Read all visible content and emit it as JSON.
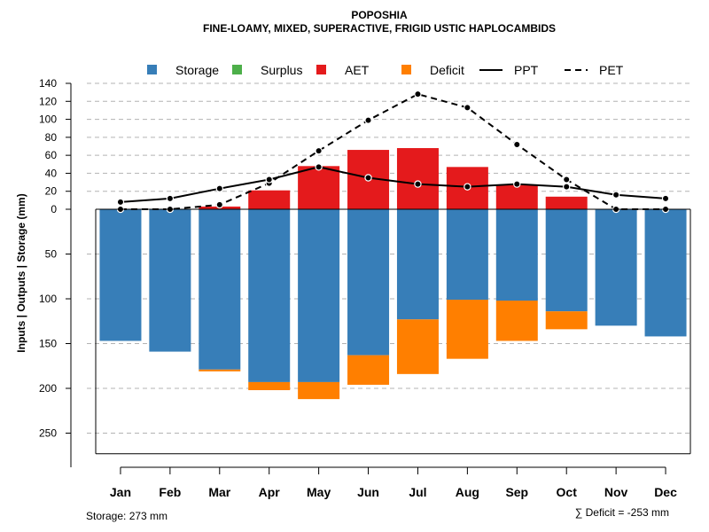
{
  "chart_data": {
    "type": "bar",
    "title": "POPOSHIA",
    "subtitle": "FINE-LOAMY, MIXED, SUPERACTIVE, FRIGID USTIC HAPLOCAMBIDS",
    "ylabel": "Inputs | Outputs | Storage    (mm)",
    "categories": [
      "Jan",
      "Feb",
      "Mar",
      "Apr",
      "May",
      "Jun",
      "Jul",
      "Aug",
      "Sep",
      "Oct",
      "Nov",
      "Dec"
    ],
    "upper_ylim": [
      0,
      140
    ],
    "upper_ticks": [
      0,
      20,
      40,
      60,
      80,
      100,
      120,
      140
    ],
    "lower_ylim": [
      0,
      273
    ],
    "lower_ticks": [
      50,
      100,
      150,
      200,
      250
    ],
    "legend": [
      {
        "label": "Storage",
        "kind": "box",
        "color": "#377eb8"
      },
      {
        "label": "Surplus",
        "kind": "box",
        "color": "#4daf4a"
      },
      {
        "label": "AET",
        "kind": "box",
        "color": "#e41a1c"
      },
      {
        "label": "Deficit",
        "kind": "box",
        "color": "#ff7f00"
      },
      {
        "label": "PPT",
        "kind": "solid",
        "color": "#000000"
      },
      {
        "label": "PET",
        "kind": "dashed",
        "color": "#000000"
      }
    ],
    "series": [
      {
        "name": "Storage",
        "color": "#377eb8",
        "values": [
          147,
          159,
          179,
          193,
          193,
          163,
          123,
          101,
          102,
          114,
          130,
          142
        ]
      },
      {
        "name": "Surplus",
        "color": "#4daf4a",
        "values": [
          0,
          0,
          0,
          0,
          0,
          0,
          0,
          0,
          0,
          0,
          0,
          0
        ]
      },
      {
        "name": "AET",
        "color": "#e41a1c",
        "values": [
          0,
          0,
          3,
          21,
          48,
          66,
          68,
          47,
          27,
          14,
          0,
          0
        ]
      },
      {
        "name": "Deficit",
        "color": "#ff7f00",
        "values": [
          0,
          0,
          2,
          9,
          19,
          33,
          61,
          66,
          45,
          20,
          0,
          0
        ]
      },
      {
        "name": "PPT",
        "color": "#000000",
        "values": [
          8,
          12,
          23,
          33,
          47,
          35,
          28,
          25,
          28,
          25,
          16,
          12
        ]
      },
      {
        "name": "PET",
        "color": "#000000",
        "values": [
          0,
          0,
          5,
          29,
          65,
          99,
          128,
          113,
          72,
          33,
          0,
          0
        ]
      }
    ],
    "storage_label": "Storage: 273 mm",
    "deficit_label": "∑ Deficit = -253 mm"
  }
}
